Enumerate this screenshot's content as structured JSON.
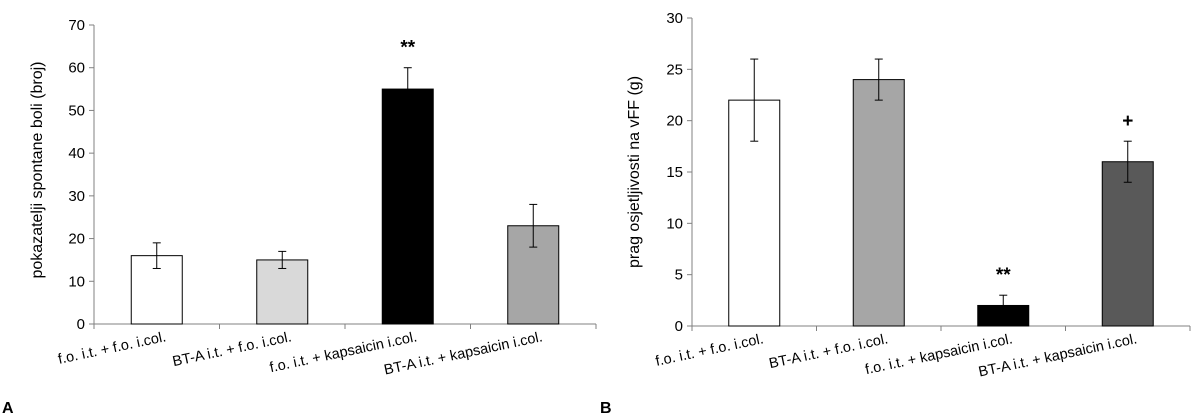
{
  "chart_data": [
    {
      "type": "bar",
      "panel": "A",
      "ylabel": "pokazatelji spontane boli (broj)",
      "ylim": [
        0,
        70
      ],
      "yticks": [
        0,
        10,
        20,
        30,
        40,
        50,
        60,
        70
      ],
      "categories": [
        "f.o. i.t. + f.o. i.col.",
        "BT-A i.t. + f.o. i.col.",
        "f.o. i.t. + kapsaicin i.col.",
        "BT-A i.t. + kapsaicin i.col."
      ],
      "values": [
        16,
        15,
        55,
        23
      ],
      "errors": [
        3,
        2,
        5,
        5
      ],
      "colors": [
        "#ffffff",
        "#d9d9d9",
        "#000000",
        "#a6a6a6"
      ],
      "annotations": [
        "",
        "",
        "**",
        ""
      ]
    },
    {
      "type": "bar",
      "panel": "B",
      "ylabel": "prag osjetljivosti na vFF (g)",
      "ylim": [
        0,
        30
      ],
      "yticks": [
        0,
        5,
        10,
        15,
        20,
        25,
        30
      ],
      "categories": [
        "f.o. i.t. + f.o. i.col.",
        "BT-A i.t. + f.o. i.col.",
        "f.o. i.t. + kapsaicin i.col.",
        "BT-A i.t. + kapsaicin i.col."
      ],
      "values": [
        22,
        24,
        2,
        16
      ],
      "errors": [
        4,
        2,
        1,
        2
      ],
      "colors": [
        "#ffffff",
        "#a6a6a6",
        "#000000",
        "#595959"
      ],
      "annotations": [
        "",
        "",
        "**",
        "+"
      ]
    }
  ]
}
